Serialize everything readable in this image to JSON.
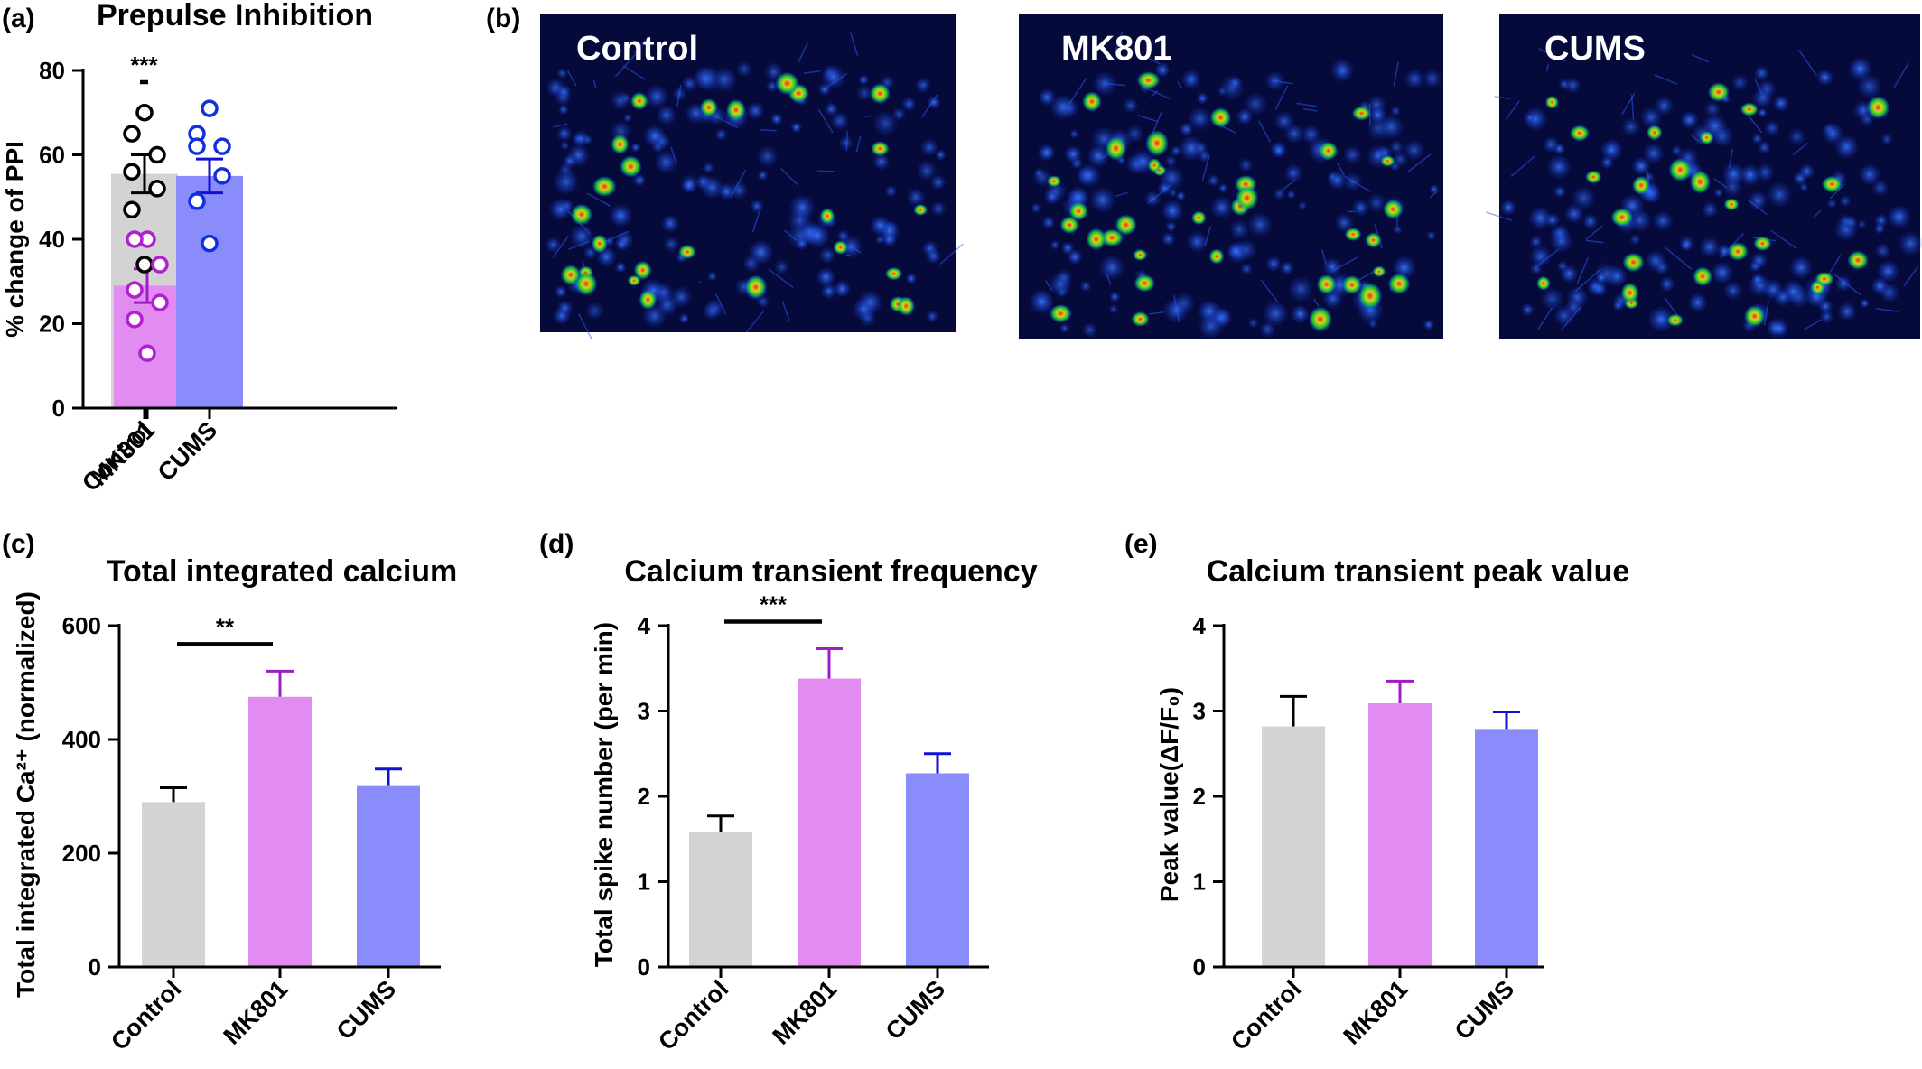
{
  "colors": {
    "control": "#d3d3d3",
    "mk801": "#e28bf0",
    "cums": "#8a8cfc",
    "control_err": "#000000",
    "mk801_err": "#9b1fc4",
    "cums_err": "#1010d8",
    "mk801_dots": "#b01fd0",
    "cums_dots": "#1030e0",
    "micrograph_bg": "#060a3a"
  },
  "panel_b": {
    "letter": "(b)",
    "images": [
      {
        "label": "Control"
      },
      {
        "label": "MK801"
      },
      {
        "label": "CUMS"
      }
    ]
  },
  "chart_data": [
    {
      "type": "bar",
      "letter": "(a)",
      "title": "Prepulse Inhibition",
      "xlabel": "",
      "ylabel": "% change of PPI",
      "categories": [
        "Control",
        "MK801",
        "CUMS"
      ],
      "values": [
        55.5,
        29,
        55
      ],
      "errors": [
        4.5,
        4,
        4
      ],
      "error_style": "both",
      "points": [
        [
          70,
          65,
          60,
          56,
          52,
          47,
          34
        ],
        [
          40,
          40,
          34,
          28,
          25,
          21,
          13
        ],
        [
          71,
          65,
          62,
          62,
          55,
          49,
          39
        ]
      ],
      "ylim": [
        0,
        80
      ],
      "yticks": [
        0,
        20,
        40,
        60,
        80
      ],
      "significance": {
        "from": 0,
        "to": 1,
        "label": "***"
      }
    },
    {
      "type": "bar",
      "letter": "(c)",
      "title": "Total integrated calcium",
      "xlabel": "",
      "ylabel": "Total integrated Ca²⁺ (normalized)",
      "categories": [
        "Control",
        "MK801",
        "CUMS"
      ],
      "values": [
        290,
        475,
        318
      ],
      "errors": [
        25,
        45,
        30
      ],
      "error_style": "upper",
      "ylim": [
        0,
        600
      ],
      "yticks": [
        0,
        200,
        400,
        600
      ],
      "significance": {
        "from": 0,
        "to": 1,
        "label": "**"
      }
    },
    {
      "type": "bar",
      "letter": "(d)",
      "title": "Calcium transient frequency",
      "xlabel": "",
      "ylabel": "Total spike number (per min)",
      "categories": [
        "Control",
        "MK801",
        "CUMS"
      ],
      "values": [
        1.58,
        3.38,
        2.27
      ],
      "errors": [
        0.19,
        0.35,
        0.23
      ],
      "error_style": "upper",
      "ylim": [
        0,
        4
      ],
      "yticks": [
        0,
        1,
        2,
        3,
        4
      ],
      "significance": {
        "from": 0,
        "to": 1,
        "label": "***"
      }
    },
    {
      "type": "bar",
      "letter": "(e)",
      "title": "Calcium transient peak value",
      "xlabel": "",
      "ylabel": "Peak value(ΔF/F₀)",
      "categories": [
        "Control",
        "MK801",
        "CUMS"
      ],
      "values": [
        2.82,
        3.09,
        2.79
      ],
      "errors": [
        0.35,
        0.26,
        0.2
      ],
      "error_style": "upper",
      "ylim": [
        0,
        4
      ],
      "yticks": [
        0,
        1,
        2,
        3,
        4
      ],
      "significance": null
    }
  ]
}
